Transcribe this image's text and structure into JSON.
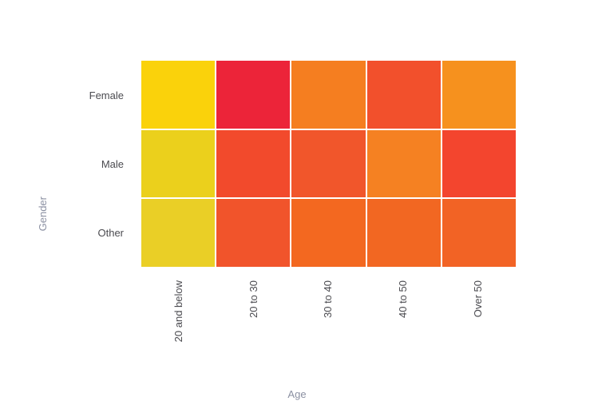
{
  "chart_data": {
    "type": "heatmap",
    "title": "",
    "xlabel": "Age",
    "ylabel": "Gender",
    "x_categories": [
      "20 and below",
      "20 to 30",
      "30 to 40",
      "40 to 50",
      "Over 50"
    ],
    "y_categories": [
      "Female",
      "Male",
      "Other"
    ],
    "cell_colors": [
      [
        "#FAD20B",
        "#EC2439",
        "#F57E20",
        "#F2502C",
        "#F6911E"
      ],
      [
        "#EBD01C",
        "#F24A2C",
        "#F1562B",
        "#F58122",
        "#F3452E"
      ],
      [
        "#EACF26",
        "#F1542B",
        "#F36820",
        "#F26722",
        "#F26325"
      ]
    ],
    "palette": "yellow (low) to red (high)",
    "gridline_color": "#ffffff",
    "legend": "none",
    "values_shown": false,
    "x_tick_rotation_deg": -90
  },
  "styles": {
    "tick_label_color": "#4b4b50",
    "axis_title_color": "#8b90a2",
    "background": "#ffffff"
  }
}
